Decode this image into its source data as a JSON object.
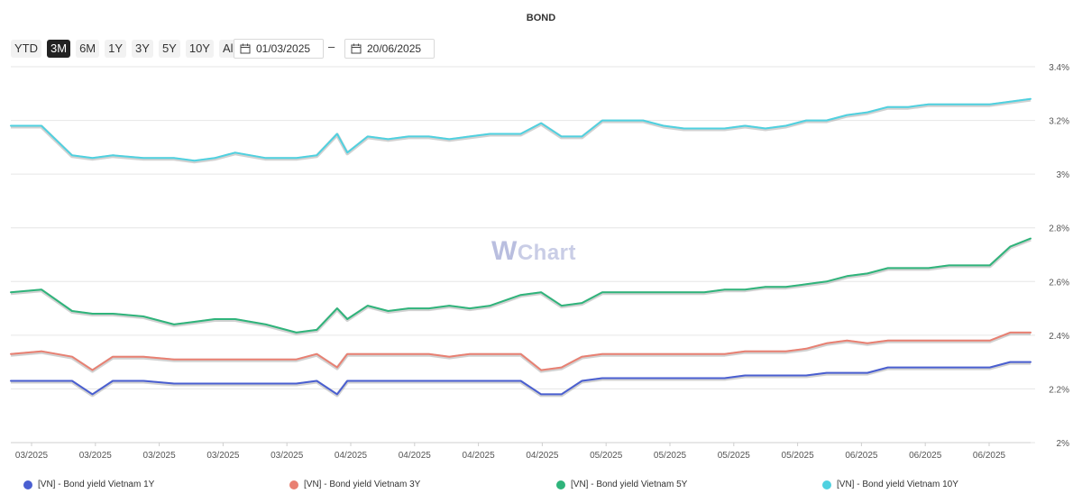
{
  "title": "BOND",
  "range_buttons": [
    "YTD",
    "3M",
    "6M",
    "1Y",
    "3Y",
    "5Y",
    "10Y",
    "All"
  ],
  "active_range": "3M",
  "date_from": "01/03/2025",
  "date_separator": "–",
  "date_to": "20/06/2025",
  "watermark_w": "W",
  "watermark_rest": "Chart",
  "chart_data": {
    "type": "line",
    "title": "BOND",
    "xlabel": "",
    "ylabel": "",
    "ylim": [
      2.0,
      3.4
    ],
    "y_ticks": [
      "3.4%",
      "3.2%",
      "3%",
      "2.8%",
      "2.6%",
      "2.4%",
      "2.2%",
      "2%"
    ],
    "y_tick_values": [
      3.4,
      3.2,
      3.0,
      2.8,
      2.6,
      2.4,
      2.2,
      2.0
    ],
    "x_tick_labels": [
      "03/2025",
      "03/2025",
      "03/2025",
      "03/2025",
      "03/2025",
      "04/2025",
      "04/2025",
      "04/2025",
      "04/2025",
      "05/2025",
      "05/2025",
      "05/2025",
      "05/2025",
      "06/2025",
      "06/2025",
      "06/2025"
    ],
    "grid": true,
    "legend_position": "bottom",
    "x": [
      0,
      3,
      6,
      8,
      10,
      13,
      16,
      18,
      20,
      22,
      25,
      28,
      30,
      32,
      33,
      35,
      37,
      39,
      41,
      43,
      45,
      47,
      50,
      52,
      54,
      56,
      58,
      60,
      62,
      64,
      66,
      68,
      70,
      72,
      74,
      76,
      78,
      80,
      82,
      84,
      86,
      88,
      90,
      92,
      94,
      96,
      98,
      100
    ],
    "series": [
      {
        "name": "[VN] - Bond yield Vietnam 1Y",
        "color": "#4a5fd1",
        "values": [
          2.23,
          2.23,
          2.23,
          2.18,
          2.23,
          2.23,
          2.22,
          2.22,
          2.22,
          2.22,
          2.22,
          2.22,
          2.23,
          2.18,
          2.23,
          2.23,
          2.23,
          2.23,
          2.23,
          2.23,
          2.23,
          2.23,
          2.23,
          2.18,
          2.18,
          2.23,
          2.24,
          2.24,
          2.24,
          2.24,
          2.24,
          2.24,
          2.24,
          2.25,
          2.25,
          2.25,
          2.25,
          2.26,
          2.26,
          2.26,
          2.28,
          2.28,
          2.28,
          2.28,
          2.28,
          2.28,
          2.3,
          2.3
        ]
      },
      {
        "name": "[VN] - Bond yield Vietnam 3Y",
        "color": "#e98072",
        "values": [
          2.33,
          2.34,
          2.32,
          2.27,
          2.32,
          2.32,
          2.31,
          2.31,
          2.31,
          2.31,
          2.31,
          2.31,
          2.33,
          2.28,
          2.33,
          2.33,
          2.33,
          2.33,
          2.33,
          2.32,
          2.33,
          2.33,
          2.33,
          2.27,
          2.28,
          2.32,
          2.33,
          2.33,
          2.33,
          2.33,
          2.33,
          2.33,
          2.33,
          2.34,
          2.34,
          2.34,
          2.35,
          2.37,
          2.38,
          2.37,
          2.38,
          2.38,
          2.38,
          2.38,
          2.38,
          2.38,
          2.41,
          2.41
        ]
      },
      {
        "name": "[VN] - Bond yield Vietnam 5Y",
        "color": "#2fb47b",
        "values": [
          2.56,
          2.57,
          2.49,
          2.48,
          2.48,
          2.47,
          2.44,
          2.45,
          2.46,
          2.46,
          2.44,
          2.41,
          2.42,
          2.5,
          2.46,
          2.51,
          2.49,
          2.5,
          2.5,
          2.51,
          2.5,
          2.51,
          2.55,
          2.56,
          2.51,
          2.52,
          2.56,
          2.56,
          2.56,
          2.56,
          2.56,
          2.56,
          2.57,
          2.57,
          2.58,
          2.58,
          2.59,
          2.6,
          2.62,
          2.63,
          2.65,
          2.65,
          2.65,
          2.66,
          2.66,
          2.66,
          2.73,
          2.76
        ]
      },
      {
        "name": "[VN] - Bond yield Vietnam 10Y",
        "color": "#4fd1e0",
        "values": [
          3.18,
          3.18,
          3.07,
          3.06,
          3.07,
          3.06,
          3.06,
          3.05,
          3.06,
          3.08,
          3.06,
          3.06,
          3.07,
          3.15,
          3.08,
          3.14,
          3.13,
          3.14,
          3.14,
          3.13,
          3.14,
          3.15,
          3.15,
          3.19,
          3.14,
          3.14,
          3.2,
          3.2,
          3.2,
          3.18,
          3.17,
          3.17,
          3.17,
          3.18,
          3.17,
          3.18,
          3.2,
          3.2,
          3.22,
          3.23,
          3.25,
          3.25,
          3.26,
          3.26,
          3.26,
          3.26,
          3.27,
          3.28
        ]
      }
    ]
  }
}
